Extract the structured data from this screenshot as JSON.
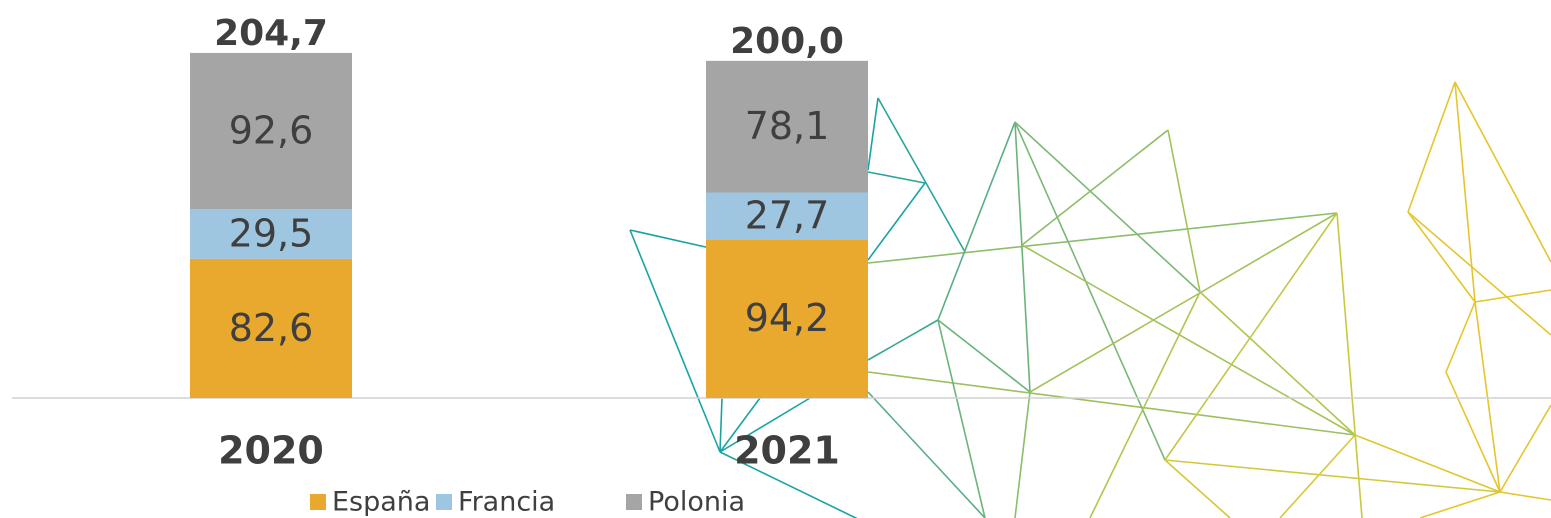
{
  "chart_data": {
    "type": "stacked-bar",
    "categories": [
      "2020",
      "2021"
    ],
    "series": [
      {
        "name": "España",
        "color": "#e9a92e",
        "values": [
          82.6,
          94.2
        ],
        "value_labels": [
          "82,6",
          "94,2"
        ]
      },
      {
        "name": "Francia",
        "color": "#9ec6e0",
        "values": [
          29.5,
          27.7
        ],
        "value_labels": [
          "29,5",
          "27,7"
        ]
      },
      {
        "name": "Polonia",
        "color": "#a5a5a5",
        "values": [
          92.6,
          78.1
        ],
        "value_labels": [
          "92,6",
          "78,1"
        ]
      }
    ],
    "totals": {
      "values": [
        204.7,
        200.0
      ],
      "value_labels": [
        "204,7",
        "200,0"
      ]
    },
    "ylim": [
      0,
      210
    ],
    "legend": "bottom"
  }
}
